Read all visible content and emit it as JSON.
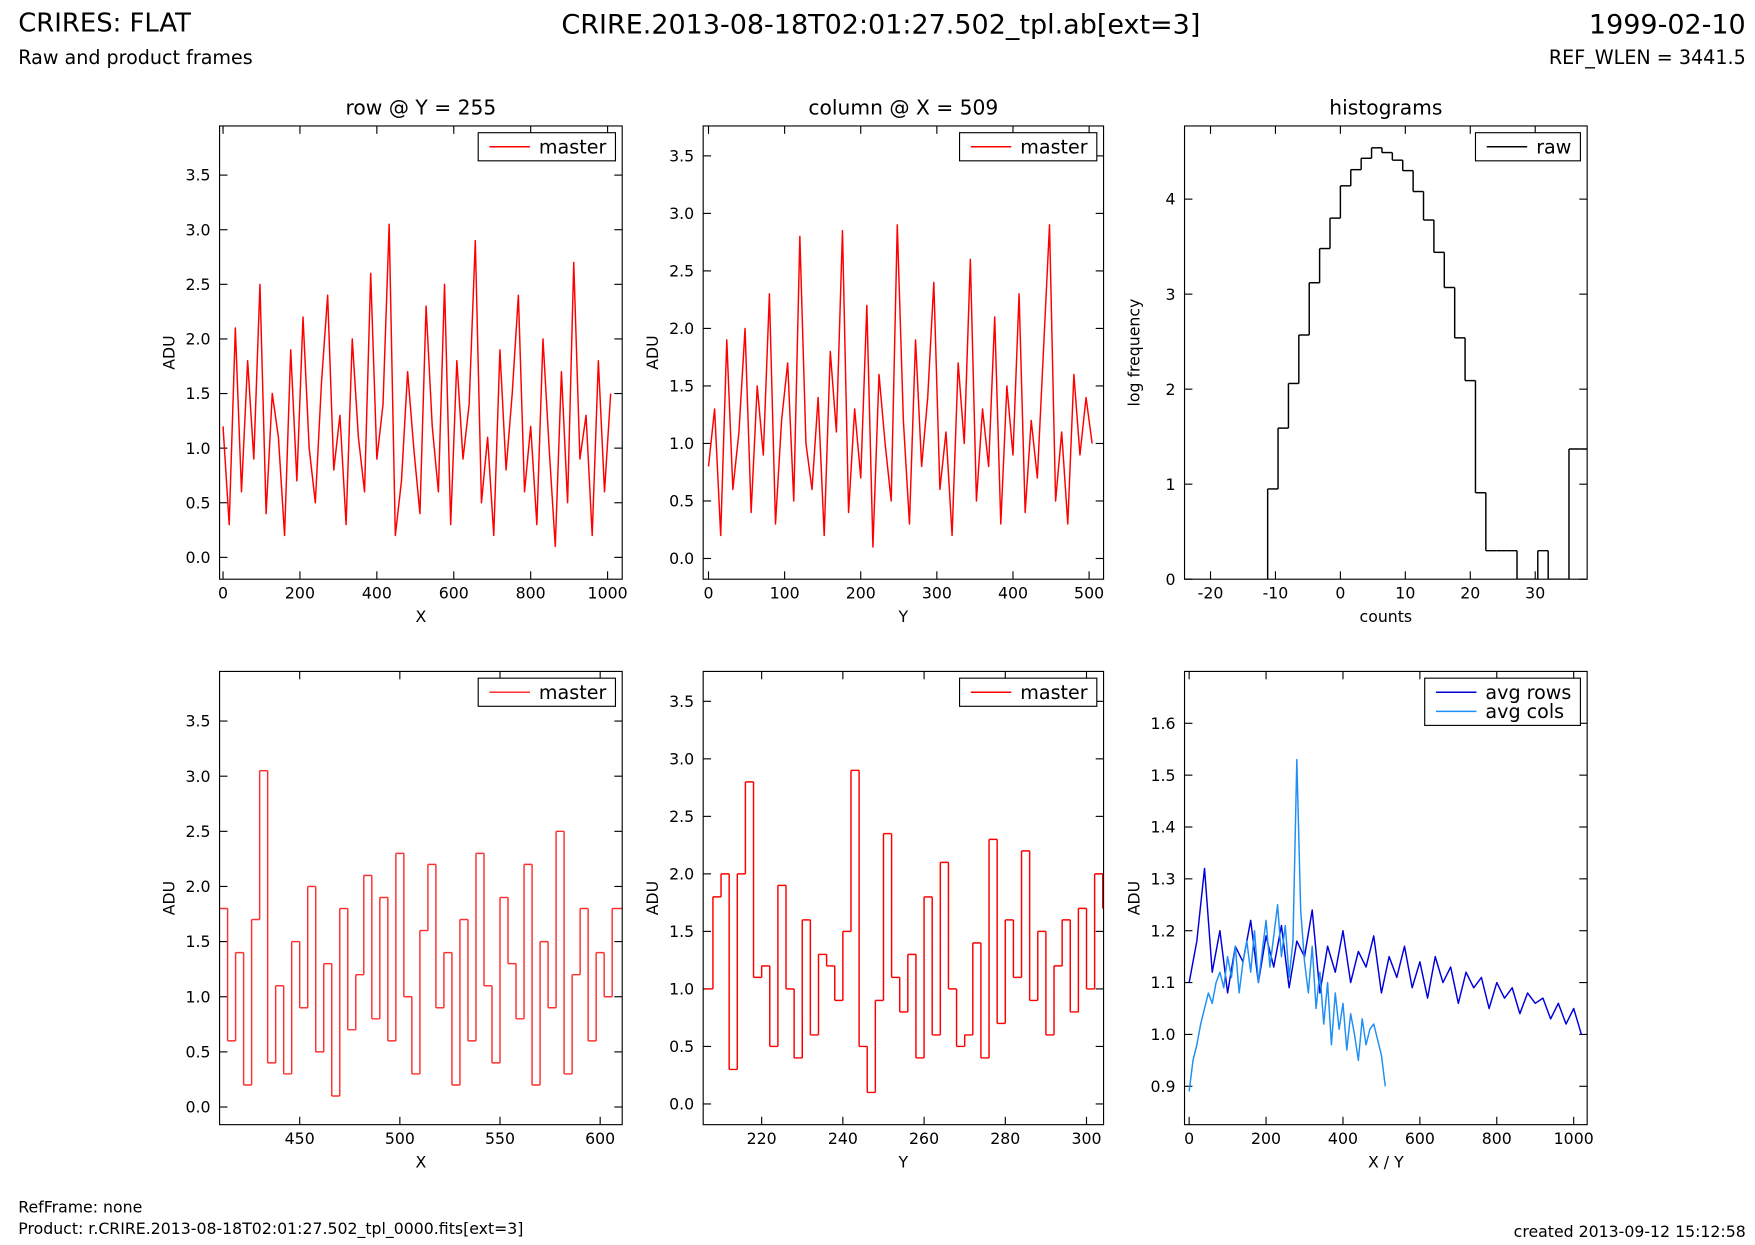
{
  "header": {
    "title": "CRIRES: FLAT",
    "subtitle": "Raw and product frames",
    "center_title": "CRIRE.2013-08-18T02:01:27.502_tpl.ab[ext=3]",
    "date": "1999-02-10",
    "ref_wlen": "REF_WLEN = 3441.5"
  },
  "footer": {
    "ref_frame": "RefFrame: none",
    "product": "Product: r.CRIRE.2013-08-18T02:01:27.502_tpl_0000.fits[ext=3]",
    "created": "created 2013-09-12 15:12:58"
  },
  "chart_data": [
    {
      "type": "line",
      "title": "row @ Y = 255",
      "x_label": "X",
      "y_label": "ADU",
      "legend": "upper right",
      "xlim": [
        -9,
        1038
      ],
      "ylim": [
        -0.2,
        3.95
      ],
      "xticks": [
        0,
        200,
        400,
        600,
        800,
        1000
      ],
      "yticks": [
        {
          "value": 0,
          "label": "0.0"
        },
        0.5,
        {
          "value": 1,
          "label": "1.0"
        },
        1.5,
        {
          "value": 2,
          "label": "2.0"
        },
        2.5,
        {
          "value": 3,
          "label": "3.0"
        },
        3.5
      ],
      "series": [
        {
          "name": "master",
          "color": "#ff0000",
          "x": [
            0,
            16,
            32,
            48,
            64,
            80,
            96,
            112,
            128,
            144,
            160,
            176,
            192,
            208,
            224,
            240,
            256,
            272,
            288,
            304,
            320,
            336,
            352,
            368,
            384,
            400,
            416,
            432,
            448,
            464,
            480,
            496,
            512,
            528,
            544,
            560,
            576,
            592,
            608,
            624,
            640,
            656,
            672,
            688,
            704,
            720,
            736,
            752,
            768,
            784,
            800,
            816,
            832,
            848,
            864,
            880,
            896,
            912,
            928,
            944,
            960,
            976,
            992,
            1008
          ],
          "values": [
            1.2,
            0.3,
            2.1,
            0.6,
            1.8,
            0.9,
            2.5,
            0.4,
            1.5,
            1.1,
            0.2,
            1.9,
            0.7,
            2.2,
            1.0,
            0.5,
            1.6,
            2.4,
            0.8,
            1.3,
            0.3,
            2.0,
            1.1,
            0.6,
            2.6,
            0.9,
            1.4,
            3.05,
            0.2,
            0.7,
            1.7,
            1.0,
            0.4,
            2.3,
            1.2,
            0.6,
            2.5,
            0.3,
            1.8,
            0.9,
            1.4,
            2.9,
            0.5,
            1.1,
            0.2,
            1.9,
            0.8,
            1.5,
            2.4,
            0.6,
            1.2,
            0.3,
            2.0,
            1.0,
            0.1,
            1.7,
            0.5,
            2.7,
            0.9,
            1.3,
            0.2,
            1.8,
            0.6,
            1.5
          ]
        }
      ]
    },
    {
      "type": "line",
      "title": "column @ X = 509",
      "x_label": "Y",
      "y_label": "ADU",
      "legend": "upper right",
      "xlim": [
        -7,
        519
      ],
      "ylim": [
        -0.18,
        3.76
      ],
      "xticks": [
        0,
        100,
        200,
        300,
        400,
        500
      ],
      "yticks": [
        {
          "value": 0,
          "label": "0.0"
        },
        0.5,
        {
          "value": 1,
          "label": "1.0"
        },
        1.5,
        {
          "value": 2,
          "label": "2.0"
        },
        2.5,
        {
          "value": 3,
          "label": "3.0"
        },
        3.5
      ],
      "series": [
        {
          "name": "master",
          "color": "#ff0000",
          "x": [
            0,
            8,
            16,
            24,
            32,
            40,
            48,
            56,
            64,
            72,
            80,
            88,
            96,
            104,
            112,
            120,
            128,
            136,
            144,
            152,
            160,
            168,
            176,
            184,
            192,
            200,
            208,
            216,
            224,
            232,
            240,
            248,
            256,
            264,
            272,
            280,
            288,
            296,
            304,
            312,
            320,
            328,
            336,
            344,
            352,
            360,
            368,
            376,
            384,
            392,
            400,
            408,
            416,
            424,
            432,
            440,
            448,
            456,
            464,
            472,
            480,
            488,
            496,
            504
          ],
          "values": [
            0.8,
            1.3,
            0.2,
            1.9,
            0.6,
            1.1,
            2.0,
            0.4,
            1.5,
            0.9,
            2.3,
            0.3,
            1.2,
            1.7,
            0.5,
            2.8,
            1.0,
            0.6,
            1.4,
            0.2,
            1.8,
            1.1,
            2.85,
            0.4,
            1.3,
            0.7,
            2.2,
            0.1,
            1.6,
            1.0,
            0.5,
            2.9,
            1.2,
            0.3,
            1.9,
            0.8,
            1.4,
            2.4,
            0.6,
            1.1,
            0.2,
            1.7,
            1.0,
            2.6,
            0.5,
            1.3,
            0.8,
            2.1,
            0.3,
            1.5,
            0.9,
            2.3,
            0.4,
            1.2,
            0.7,
            1.8,
            2.9,
            0.5,
            1.1,
            0.3,
            1.6,
            0.9,
            1.4,
            1.0
          ]
        }
      ]
    },
    {
      "type": "histogram",
      "title": "histograms",
      "x_label": "counts",
      "y_label": "log frequency",
      "legend": "upper right",
      "xlim": [
        -24,
        38
      ],
      "ylim": [
        0,
        4.77
      ],
      "xticks": [
        -20,
        -10,
        0,
        10,
        20,
        30
      ],
      "yticks": [
        0,
        1,
        2,
        3,
        4
      ],
      "series": [
        {
          "name": "raw",
          "color": "#000000",
          "bins": [
            -11.2,
            -9.6,
            -8.0,
            -6.4,
            -4.8,
            -3.2,
            -1.6,
            0,
            1.6,
            3.2,
            4.8,
            6.4,
            8.0,
            9.6,
            11.2,
            12.8,
            14.4,
            16.0,
            17.6,
            19.2,
            20.8,
            22.4,
            24.0,
            25.6,
            27.2,
            28.8,
            30.4,
            32.0,
            33.6,
            35.2,
            36.8,
            38.4
          ],
          "values": [
            0.95,
            1.59,
            2.06,
            2.57,
            3.12,
            3.48,
            3.8,
            4.14,
            4.31,
            4.43,
            4.54,
            4.49,
            4.41,
            4.3,
            4.08,
            3.78,
            3.44,
            3.07,
            2.54,
            2.09,
            0.91,
            0.3,
            0.3,
            0.3,
            0,
            0,
            0.3,
            0,
            0,
            1.37,
            1.37
          ]
        }
      ]
    },
    {
      "type": "line",
      "drawstyle": "steps",
      "x_label": "X",
      "y_label": "ADU",
      "legend": "upper right",
      "xlim": [
        410,
        611
      ],
      "ylim": [
        -0.16,
        3.95
      ],
      "xticks": [
        450,
        500,
        550,
        600
      ],
      "yticks": [
        {
          "value": 0,
          "label": "0.0"
        },
        0.5,
        {
          "value": 1,
          "label": "1.0"
        },
        1.5,
        {
          "value": 2,
          "label": "2.0"
        },
        2.5,
        {
          "value": 3,
          "label": "3.0"
        },
        3.5
      ],
      "series": [
        {
          "name": "master",
          "color": "#ff3030",
          "x": [
            410,
            414,
            418,
            422,
            426,
            430,
            434,
            438,
            442,
            446,
            450,
            454,
            458,
            462,
            466,
            470,
            474,
            478,
            482,
            486,
            490,
            494,
            498,
            502,
            506,
            510,
            514,
            518,
            522,
            526,
            530,
            534,
            538,
            542,
            546,
            550,
            554,
            558,
            562,
            566,
            570,
            574,
            578,
            582,
            586,
            590,
            594,
            598,
            602,
            606
          ],
          "values": [
            1.8,
            0.6,
            1.4,
            0.2,
            1.7,
            3.05,
            0.4,
            1.1,
            0.3,
            1.5,
            0.9,
            2.0,
            0.5,
            1.3,
            0.1,
            1.8,
            0.7,
            1.2,
            2.1,
            0.8,
            1.9,
            0.6,
            2.3,
            1.0,
            0.3,
            1.6,
            2.2,
            0.9,
            1.4,
            0.2,
            1.7,
            0.6,
            2.3,
            1.1,
            0.4,
            1.9,
            1.3,
            0.8,
            2.2,
            0.2,
            1.5,
            0.9,
            2.5,
            0.3,
            1.2,
            1.8,
            0.6,
            1.4,
            1.0,
            1.8
          ]
        }
      ]
    },
    {
      "type": "line",
      "drawstyle": "steps",
      "x_label": "Y",
      "y_label": "ADU",
      "legend": "upper right",
      "xlim": [
        205.6,
        304.2
      ],
      "ylim": [
        -0.18,
        3.76
      ],
      "xticks": [
        220,
        240,
        260,
        280,
        300
      ],
      "yticks": [
        {
          "value": 0,
          "label": "0.0"
        },
        0.5,
        {
          "value": 1,
          "label": "1.0"
        },
        1.5,
        {
          "value": 2,
          "label": "2.0"
        },
        2.5,
        {
          "value": 3,
          "label": "3.0"
        },
        3.5
      ],
      "series": [
        {
          "name": "master",
          "color": "#ff0000",
          "x": [
            206,
            208,
            210,
            212,
            214,
            216,
            218,
            220,
            222,
            224,
            226,
            228,
            230,
            232,
            234,
            236,
            238,
            240,
            242,
            244,
            246,
            248,
            250,
            252,
            254,
            256,
            258,
            260,
            262,
            264,
            266,
            268,
            270,
            272,
            274,
            276,
            278,
            280,
            282,
            284,
            286,
            288,
            290,
            292,
            294,
            296,
            298,
            300,
            302,
            304
          ],
          "values": [
            1.0,
            1.8,
            2.0,
            0.3,
            2.0,
            2.8,
            1.1,
            1.2,
            0.5,
            1.9,
            1.0,
            0.4,
            1.6,
            0.6,
            1.3,
            1.2,
            0.9,
            1.5,
            2.9,
            0.5,
            0.1,
            0.9,
            2.35,
            1.1,
            0.8,
            1.3,
            0.4,
            1.8,
            0.6,
            2.1,
            1.0,
            0.5,
            0.6,
            1.4,
            0.4,
            2.3,
            0.7,
            1.6,
            1.1,
            2.2,
            0.9,
            1.5,
            0.6,
            1.2,
            1.6,
            0.8,
            1.7,
            1.0,
            2.0,
            1.7
          ]
        }
      ]
    },
    {
      "type": "line",
      "x_label": "X / Y",
      "y_label": "ADU",
      "legend": "upper right",
      "xlim": [
        -12,
        1035
      ],
      "ylim": [
        0.826,
        1.7
      ],
      "xticks": [
        0,
        200,
        400,
        600,
        800,
        1000
      ],
      "yticks": [
        0.9,
        {
          "value": 1,
          "label": "1.0"
        },
        1.1,
        1.2,
        1.3,
        1.4,
        1.5,
        1.6
      ],
      "series": [
        {
          "name": "avg rows",
          "color": "#0000dd",
          "x": [
            0,
            20,
            40,
            60,
            80,
            100,
            120,
            140,
            160,
            180,
            200,
            220,
            240,
            260,
            280,
            300,
            320,
            340,
            360,
            380,
            400,
            420,
            440,
            460,
            480,
            500,
            520,
            540,
            560,
            580,
            600,
            620,
            640,
            660,
            680,
            700,
            720,
            740,
            760,
            780,
            800,
            820,
            840,
            860,
            880,
            900,
            920,
            940,
            960,
            980,
            1000,
            1020
          ],
          "values": [
            1.1,
            1.18,
            1.32,
            1.12,
            1.2,
            1.08,
            1.17,
            1.14,
            1.22,
            1.1,
            1.19,
            1.13,
            1.21,
            1.09,
            1.18,
            1.15,
            1.24,
            1.08,
            1.17,
            1.12,
            1.2,
            1.1,
            1.16,
            1.13,
            1.19,
            1.08,
            1.15,
            1.11,
            1.17,
            1.09,
            1.14,
            1.07,
            1.15,
            1.1,
            1.13,
            1.06,
            1.12,
            1.09,
            1.11,
            1.05,
            1.1,
            1.07,
            1.09,
            1.04,
            1.08,
            1.06,
            1.07,
            1.03,
            1.06,
            1.02,
            1.05,
            1.0
          ]
        },
        {
          "name": "avg cols",
          "color": "#1e8ff5",
          "x": [
            0,
            10,
            20,
            30,
            40,
            50,
            60,
            70,
            80,
            90,
            100,
            110,
            120,
            130,
            140,
            150,
            160,
            170,
            180,
            190,
            200,
            210,
            220,
            230,
            240,
            250,
            260,
            270,
            280,
            290,
            300,
            310,
            320,
            330,
            340,
            350,
            360,
            370,
            380,
            390,
            400,
            410,
            420,
            430,
            440,
            450,
            460,
            470,
            480,
            490,
            500,
            510
          ],
          "values": [
            0.89,
            0.95,
            0.98,
            1.02,
            1.05,
            1.08,
            1.06,
            1.1,
            1.12,
            1.09,
            1.15,
            1.11,
            1.17,
            1.08,
            1.14,
            1.18,
            1.12,
            1.2,
            1.1,
            1.16,
            1.22,
            1.13,
            1.19,
            1.25,
            1.15,
            1.21,
            1.11,
            1.18,
            1.53,
            1.24,
            1.14,
            1.08,
            1.17,
            1.05,
            1.12,
            1.02,
            1.1,
            0.98,
            1.08,
            1.01,
            1.06,
            0.97,
            1.04,
            1.0,
            0.95,
            1.03,
            0.98,
            1.01,
            1.02,
            0.99,
            0.96,
            0.9
          ]
        }
      ]
    }
  ]
}
